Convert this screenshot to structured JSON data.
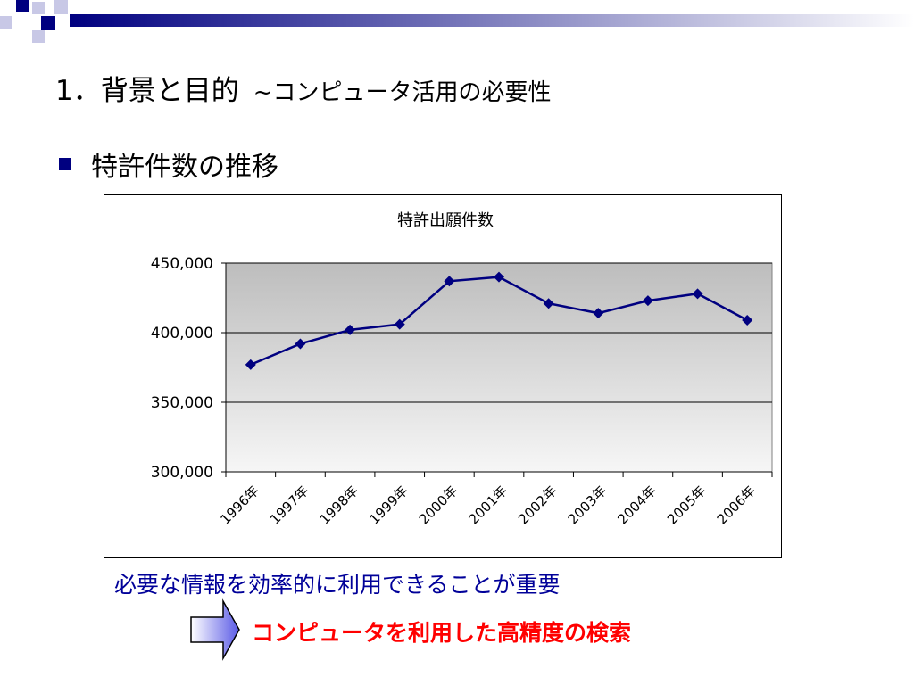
{
  "slide": {
    "title_main": "1．背景と目的",
    "title_sub": "~コンピュータ活用の必要性",
    "bullet": "特許件数の推移",
    "note": "必要な情報を効率的に利用できることが重要",
    "conclusion": "コンピュータを利用した高精度の検索"
  },
  "colors": {
    "series": "#000080",
    "accent": "#000080",
    "note_text": "#000099",
    "conclusion_text": "#ff0000"
  },
  "chart_data": {
    "type": "line",
    "title": "特許出願件数",
    "xlabel": "",
    "ylabel": "",
    "categories": [
      "1996年",
      "1997年",
      "1998年",
      "1999年",
      "2000年",
      "2001年",
      "2002年",
      "2003年",
      "2004年",
      "2005年",
      "2006年"
    ],
    "series": [
      {
        "values": [
          377000,
          392000,
          402000,
          406000,
          437000,
          440000,
          421000,
          414000,
          423000,
          428000,
          409000
        ]
      }
    ],
    "ylim": [
      300000,
      450000
    ],
    "yticks": [
      "300,000",
      "350,000",
      "400,000",
      "450,000"
    ],
    "grid": true,
    "legend": "none"
  }
}
